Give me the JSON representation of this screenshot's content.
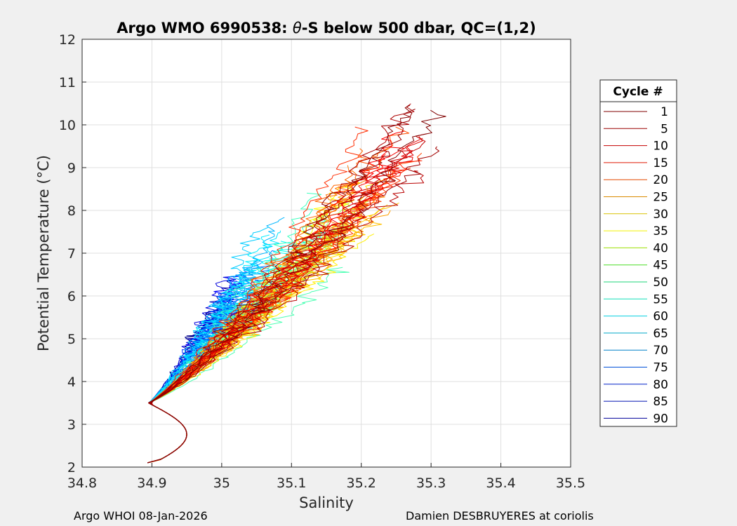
{
  "chart_data": {
    "type": "line",
    "title_prefix": "Argo WMO 6990538: ",
    "title_theta": "θ",
    "title_suffix": "-S below 500 dbar,  QC=(1,2)",
    "xlabel": "Salinity",
    "ylabel_prefix": "Potential Temperature (",
    "ylabel_unit": "°C",
    "ylabel_suffix": ")",
    "xlim": [
      34.8,
      35.5
    ],
    "ylim": [
      2,
      12
    ],
    "xticks": [
      "34.8",
      "34.9",
      "35",
      "35.1",
      "35.2",
      "35.3",
      "35.4",
      "35.5"
    ],
    "yticks": [
      "2",
      "3",
      "4",
      "5",
      "6",
      "7",
      "8",
      "9",
      "10",
      "11",
      "12"
    ],
    "grid": true,
    "legend_placement": "right",
    "legend_title": "Cycle #",
    "cycle_range": [
      1,
      90
    ],
    "series": [
      {
        "name": "1",
        "color": "#800000"
      },
      {
        "name": "5",
        "color": "#9b0000"
      },
      {
        "name": "10",
        "color": "#c40000"
      },
      {
        "name": "15",
        "color": "#e01600"
      },
      {
        "name": "20",
        "color": "#e64a00"
      },
      {
        "name": "25",
        "color": "#d98a00"
      },
      {
        "name": "30",
        "color": "#d8c100"
      },
      {
        "name": "35",
        "color": "#f0f000"
      },
      {
        "name": "40",
        "color": "#9be000"
      },
      {
        "name": "45",
        "color": "#4dde26"
      },
      {
        "name": "50",
        "color": "#1ed67a"
      },
      {
        "name": "55",
        "color": "#10e0b8"
      },
      {
        "name": "60",
        "color": "#00cfe0"
      },
      {
        "name": "65",
        "color": "#00a6c8"
      },
      {
        "name": "70",
        "color": "#0080c8"
      },
      {
        "name": "75",
        "color": "#0050d8"
      },
      {
        "name": "80",
        "color": "#0020c8"
      },
      {
        "name": "85",
        "color": "#0010b0"
      },
      {
        "name": "90",
        "color": "#00009a"
      }
    ]
  },
  "footer": {
    "left": "Argo WHOI 08-Jan-2026",
    "right": "Damien DESBRUYERES at coriolis"
  }
}
